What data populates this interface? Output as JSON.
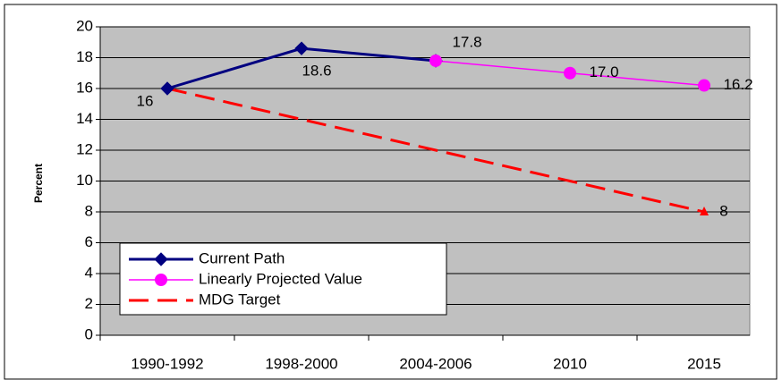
{
  "chart_data": {
    "type": "line",
    "ylabel": "Percent",
    "categories": [
      "1990-1992",
      "1998-2000",
      "2004-2006",
      "2010",
      "2015"
    ],
    "ylim": [
      0,
      20
    ],
    "yticks": [
      0,
      2,
      4,
      6,
      8,
      10,
      12,
      14,
      16,
      18,
      20
    ],
    "grid": true,
    "background": "#c0c0c0",
    "legend": "lower left",
    "series": [
      {
        "name": "Current Path",
        "color": "#000080",
        "marker": "diamond",
        "dash": "solid",
        "values": [
          16,
          18.6,
          17.8,
          null,
          null
        ],
        "value_labels": [
          "16",
          "18.6",
          null,
          null,
          null
        ]
      },
      {
        "name": "Linearly Projected Value",
        "color": "#ff00ff",
        "marker": "circle",
        "dash": "solid",
        "values": [
          null,
          null,
          17.8,
          17.0,
          16.2
        ],
        "value_labels": [
          null,
          null,
          "17.8",
          "17.0",
          "16.2"
        ]
      },
      {
        "name": "MDG Target",
        "color": "#ff0000",
        "marker": "triangle",
        "dash": "dashed",
        "values": [
          16,
          14,
          12,
          10,
          8
        ],
        "value_labels": [
          null,
          null,
          null,
          null,
          "8"
        ]
      }
    ]
  }
}
